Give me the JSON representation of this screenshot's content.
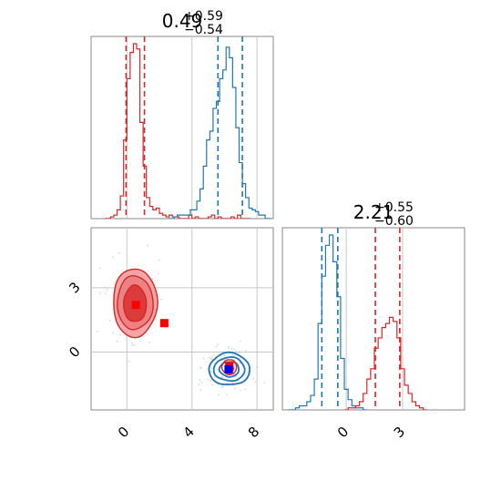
{
  "chart_data": {
    "type": "corner",
    "colors": {
      "red": "#d62728",
      "blue": "#1f77b4",
      "red_fill": "#f4a0a0",
      "red_fill_inner": "#e24b4b",
      "grid": "#c8c8c8"
    },
    "panels": [
      {
        "id": "p1d_x",
        "type": "histogram",
        "title_main": "0.49",
        "title_sup": "+0.59",
        "title_sub": "−0.54",
        "xlim": [
          -2.2,
          9.0
        ],
        "grid_x": [
          0,
          4,
          8
        ],
        "series": [
          {
            "name": "red",
            "color": "#d62728",
            "quantiles": [
              -0.05,
              1.08
            ],
            "bins_x": [
              -1.3,
              -1.1,
              -0.9,
              -0.7,
              -0.5,
              -0.3,
              -0.1,
              0.1,
              0.3,
              0.5,
              0.7,
              0.9,
              1.1,
              1.3,
              1.5,
              1.7,
              1.9,
              2.1,
              2.3,
              2.5,
              2.7,
              2.9,
              3.1,
              3.3,
              3.5,
              3.7,
              3.9,
              4.1,
              4.3,
              4.5,
              4.7,
              4.9,
              5.1,
              5.3,
              5.5,
              5.7,
              5.9,
              6.1,
              6.3,
              6.5,
              6.7,
              6.9,
              7.1,
              7.3,
              7.5
            ],
            "counts": [
              0,
              0,
              0.01,
              0.02,
              0.05,
              0.13,
              0.45,
              0.8,
              0.95,
              1.0,
              0.97,
              0.55,
              0.3,
              0.12,
              0.07,
              0.05,
              0.06,
              0.03,
              0.02,
              0.01,
              0.02,
              0.01,
              0.01,
              0.0,
              0.0,
              0.0,
              0.02,
              0.0,
              0.01,
              0.0,
              0.0,
              0.0,
              0.01,
              0.02,
              0.0,
              0.01,
              0.0,
              0.0,
              0.0,
              0.01,
              0.0,
              0.02,
              0.0,
              0.0,
              0.0
            ]
          },
          {
            "name": "blue",
            "color": "#1f77b4",
            "quantiles": [
              5.6,
              7.1
            ],
            "bins_x": [
              2.6,
              2.8,
              3.0,
              3.2,
              3.4,
              3.6,
              3.8,
              4.0,
              4.2,
              4.4,
              4.6,
              4.8,
              5.0,
              5.2,
              5.4,
              5.6,
              5.8,
              6.0,
              6.2,
              6.4,
              6.6,
              6.8,
              7.0,
              7.2,
              7.4,
              7.6,
              7.8,
              8.0,
              8.2,
              8.4,
              8.6,
              8.8
            ],
            "counts": [
              0,
              0,
              0.01,
              0.02,
              0.02,
              0.02,
              0.02,
              0.05,
              0.05,
              0.1,
              0.17,
              0.3,
              0.45,
              0.5,
              0.63,
              0.67,
              0.8,
              0.85,
              0.98,
              0.92,
              0.75,
              0.52,
              0.32,
              0.2,
              0.12,
              0.06,
              0.05,
              0.04,
              0.02,
              0.02,
              0.0,
              0.0
            ]
          }
        ]
      },
      {
        "id": "p1d_y",
        "type": "histogram",
        "title_main": "2.21",
        "title_sup": "+0.55",
        "title_sub": "−0.60",
        "xlim": [
          -3.4,
          6.3
        ],
        "grid_x": [
          0,
          3
        ],
        "series": [
          {
            "name": "blue",
            "color": "#1f77b4",
            "quantiles": [
              -1.3,
              -0.45
            ],
            "bins_x": [
              -3.0,
              -2.8,
              -2.6,
              -2.4,
              -2.2,
              -2.0,
              -1.8,
              -1.6,
              -1.4,
              -1.2,
              -1.0,
              -0.8,
              -0.6,
              -0.4,
              -0.2,
              0.0,
              0.2,
              0.4,
              0.6,
              0.8,
              1.0
            ],
            "counts": [
              0,
              0,
              0.01,
              0.02,
              0.02,
              0.04,
              0.07,
              0.15,
              0.42,
              0.65,
              0.8,
              0.85,
              0.72,
              0.55,
              0.25,
              0.1,
              0.05,
              0.02,
              0.01,
              0.01,
              0.0
            ]
          },
          {
            "name": "red",
            "color": "#d62728",
            "quantiles": [
              1.55,
              2.85
            ],
            "bins_x": [
              0.0,
              0.2,
              0.4,
              0.6,
              0.8,
              1.0,
              1.2,
              1.4,
              1.6,
              1.8,
              2.0,
              2.2,
              2.4,
              2.6,
              2.8,
              3.0,
              3.2,
              3.4,
              3.6,
              3.8,
              4.0,
              4.2
            ],
            "counts": [
              0.0,
              0.01,
              0.01,
              0.02,
              0.04,
              0.08,
              0.15,
              0.2,
              0.3,
              0.35,
              0.4,
              0.42,
              0.45,
              0.43,
              0.35,
              0.2,
              0.12,
              0.08,
              0.04,
              0.02,
              0.01,
              0.0
            ]
          }
        ]
      },
      {
        "id": "p2d",
        "type": "contour",
        "xlim": [
          -2.2,
          9.0
        ],
        "ylim": [
          -2.7,
          5.8
        ],
        "grid_x": [
          0,
          4,
          8
        ],
        "grid_y": [
          0,
          3
        ],
        "x_ticks": [
          "0",
          "4",
          "8"
        ],
        "y_ticks": [
          "0",
          "3"
        ],
        "red_levels": [
          {
            "cx": 0.5,
            "cy": 2.3,
            "rx": 1.35,
            "ry": 1.6,
            "fill": "#f4a0a0",
            "opacity": 0.95
          },
          {
            "cx": 0.5,
            "cy": 2.3,
            "rx": 1.1,
            "ry": 1.25,
            "fill": "#ec7f7f",
            "opacity": 0.95
          },
          {
            "cx": 0.5,
            "cy": 2.25,
            "rx": 0.7,
            "ry": 0.85,
            "fill": "#dc3b3b",
            "opacity": 1.0
          }
        ],
        "red_small_levels": [
          {
            "cx": 6.3,
            "cy": -0.7,
            "rx": 0.45,
            "ry": 0.35
          },
          {
            "cx": 6.3,
            "cy": -0.8,
            "rx": 0.25,
            "ry": 0.2
          }
        ],
        "blue_levels": [
          {
            "cx": 6.3,
            "cy": -0.8,
            "rx": 1.25,
            "ry": 0.75
          },
          {
            "cx": 6.3,
            "cy": -0.8,
            "rx": 0.95,
            "ry": 0.55
          },
          {
            "cx": 6.3,
            "cy": -0.8,
            "rx": 0.6,
            "ry": 0.35
          }
        ],
        "markers": [
          {
            "x": 0.55,
            "y": 2.2,
            "color": "#ff0000"
          },
          {
            "x": 2.3,
            "y": 1.35,
            "color": "#ff0000"
          },
          {
            "x": 6.3,
            "y": -0.65,
            "color": "#ff0000"
          },
          {
            "x": 6.25,
            "y": -0.8,
            "color": "#0000ff"
          }
        ]
      }
    ],
    "y_hist_ticks": [
      "0",
      "3"
    ]
  }
}
